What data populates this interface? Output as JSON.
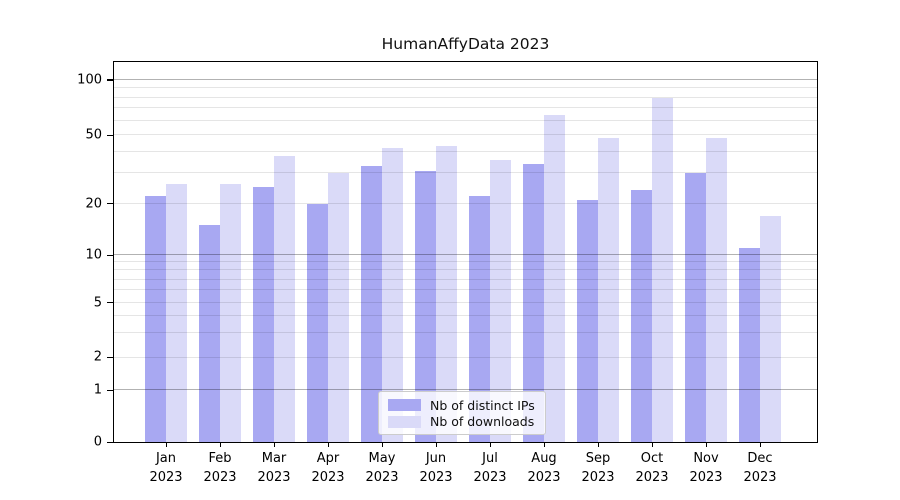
{
  "title": "HumanAffyData 2023",
  "chart_data": {
    "type": "bar",
    "title": "HumanAffyData 2023",
    "categories": [
      "Jan 2023",
      "Feb 2023",
      "Mar 2023",
      "Apr 2023",
      "May 2023",
      "Jun 2023",
      "Jul 2023",
      "Aug 2023",
      "Sep 2023",
      "Oct 2023",
      "Nov 2023",
      "Dec 2023"
    ],
    "series": [
      {
        "name": "Nb of distinct IPs",
        "color": "#a8a8f2",
        "values": [
          22,
          15,
          25,
          20,
          33,
          31,
          22,
          34,
          21,
          24,
          30,
          11
        ]
      },
      {
        "name": "Nb of downloads",
        "color": "#dadaf8",
        "values": [
          26,
          26,
          38,
          30,
          42,
          43,
          36,
          64,
          48,
          80,
          48,
          17
        ]
      }
    ],
    "xlabel": "",
    "ylabel": "",
    "yscale": "symlog",
    "ylim": [
      0,
      125
    ],
    "yticks": [
      0,
      1,
      2,
      5,
      10,
      20,
      50,
      100
    ],
    "gridlines": {
      "major": [
        1,
        10,
        100
      ],
      "minor": [
        2,
        3,
        4,
        5,
        6,
        7,
        8,
        9,
        20,
        30,
        40,
        50,
        60,
        70,
        80,
        90
      ]
    },
    "grid": true,
    "legend": {
      "position": "lower center",
      "entries": [
        "Nb of distinct IPs",
        "Nb of downloads"
      ]
    },
    "axis_calibration": {
      "anchors": [
        [
          0,
          0
        ],
        [
          1,
          0.136
        ],
        [
          2,
          0.2225
        ],
        [
          5,
          0.3665
        ],
        [
          10,
          0.492
        ],
        [
          20,
          0.6274
        ],
        [
          50,
          0.808
        ],
        [
          100,
          0.9529
        ]
      ]
    }
  }
}
